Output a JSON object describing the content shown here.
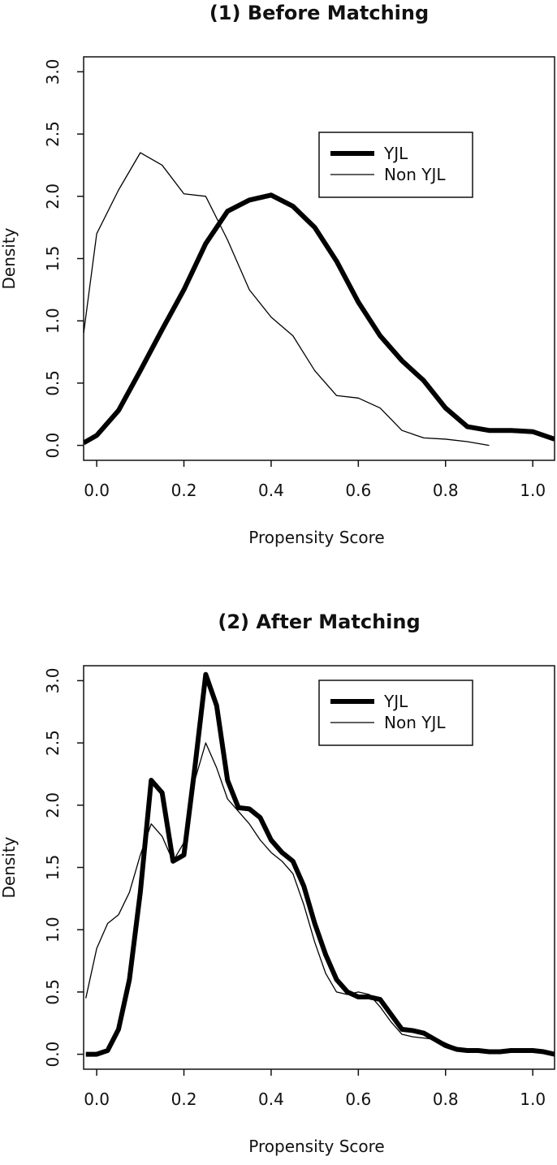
{
  "chart_data": [
    {
      "type": "line",
      "title": "(1) Before Matching",
      "x_label": "Propensity Score",
      "y_label": "Density",
      "xlim": [
        -0.03,
        1.05
      ],
      "ylim": [
        -0.12,
        3.12
      ],
      "xticks": [
        {
          "value": 0,
          "label": "0.0"
        },
        0.2,
        0.4,
        0.6,
        0.8,
        {
          "value": 1,
          "label": "1.0"
        }
      ],
      "yticks": [
        {
          "value": 0,
          "label": "0.0"
        },
        0.5,
        {
          "value": 1,
          "label": "1.0"
        },
        1.5,
        {
          "value": 2,
          "label": "2.0"
        },
        2.5,
        {
          "value": 3,
          "label": "3.0"
        }
      ],
      "legend": "top right",
      "x": [
        -0.03,
        0,
        0.05,
        0.1,
        0.15,
        0.2,
        0.25,
        0.3,
        0.35,
        0.4,
        0.45,
        0.5,
        0.55,
        0.6,
        0.65,
        0.7,
        0.75,
        0.8,
        0.85,
        0.9,
        0.95,
        1.0,
        1.05
      ],
      "series": [
        {
          "name": "YJL",
          "color": "#000000",
          "values": [
            0.02,
            0.08,
            0.28,
            0.6,
            0.93,
            1.25,
            1.62,
            1.88,
            1.97,
            2.01,
            1.92,
            1.75,
            1.48,
            1.15,
            0.88,
            0.68,
            0.52,
            0.3,
            0.15,
            0.12,
            0.12,
            0.11,
            0.05
          ]
        },
        {
          "name": "Non YJL",
          "color": "#000000",
          "values": [
            0.9,
            1.7,
            2.05,
            2.35,
            2.25,
            2.02,
            2.0,
            1.65,
            1.25,
            1.03,
            0.88,
            0.6,
            0.4,
            0.38,
            0.3,
            0.12,
            0.06,
            0.05,
            0.03,
            0.0,
            null,
            null,
            null
          ]
        }
      ]
    },
    {
      "type": "line",
      "title": "(2) After Matching",
      "x_label": "Propensity Score",
      "y_label": "Density",
      "xlim": [
        -0.03,
        1.05
      ],
      "ylim": [
        -0.12,
        3.12
      ],
      "xticks": [
        {
          "value": 0,
          "label": "0.0"
        },
        0.2,
        0.4,
        0.6,
        0.8,
        {
          "value": 1,
          "label": "1.0"
        }
      ],
      "yticks": [
        {
          "value": 0,
          "label": "0.0"
        },
        0.5,
        {
          "value": 1,
          "label": "1.0"
        },
        1.5,
        {
          "value": 2,
          "label": "2.0"
        },
        2.5,
        {
          "value": 3,
          "label": "3.0"
        }
      ],
      "legend": "top right",
      "x": [
        -0.025,
        0,
        0.025,
        0.05,
        0.075,
        0.1,
        0.125,
        0.15,
        0.175,
        0.2,
        0.225,
        0.25,
        0.275,
        0.3,
        0.325,
        0.35,
        0.375,
        0.4,
        0.425,
        0.45,
        0.475,
        0.5,
        0.525,
        0.55,
        0.575,
        0.6,
        0.625,
        0.65,
        0.675,
        0.7,
        0.725,
        0.75,
        0.775,
        0.8,
        0.825,
        0.85,
        0.875,
        0.9,
        0.925,
        0.95,
        0.975,
        1.0,
        1.025,
        1.05
      ],
      "series": [
        {
          "name": "YJL",
          "color": "#000000",
          "values": [
            0,
            0,
            0.03,
            0.2,
            0.6,
            1.3,
            2.2,
            2.1,
            1.55,
            1.6,
            2.3,
            3.05,
            2.8,
            2.2,
            1.98,
            1.97,
            1.9,
            1.72,
            1.62,
            1.55,
            1.35,
            1.05,
            0.8,
            0.6,
            0.5,
            0.46,
            0.46,
            0.44,
            0.32,
            0.2,
            0.19,
            0.17,
            0.12,
            0.07,
            0.04,
            0.03,
            0.03,
            0.02,
            0.02,
            0.03,
            0.03,
            0.03,
            0.02,
            0.0
          ]
        },
        {
          "name": "Non YJL",
          "color": "#000000",
          "values": [
            0.45,
            0.85,
            1.05,
            1.12,
            1.3,
            1.6,
            1.85,
            1.75,
            1.55,
            1.7,
            2.2,
            2.5,
            2.3,
            2.05,
            1.95,
            1.85,
            1.72,
            1.62,
            1.55,
            1.45,
            1.2,
            0.9,
            0.65,
            0.5,
            0.48,
            0.5,
            0.48,
            0.38,
            0.26,
            0.16,
            0.14,
            0.13,
            0.12,
            0.09,
            0.05,
            null,
            null,
            null,
            null,
            null,
            null,
            null,
            null,
            null
          ]
        }
      ]
    }
  ]
}
